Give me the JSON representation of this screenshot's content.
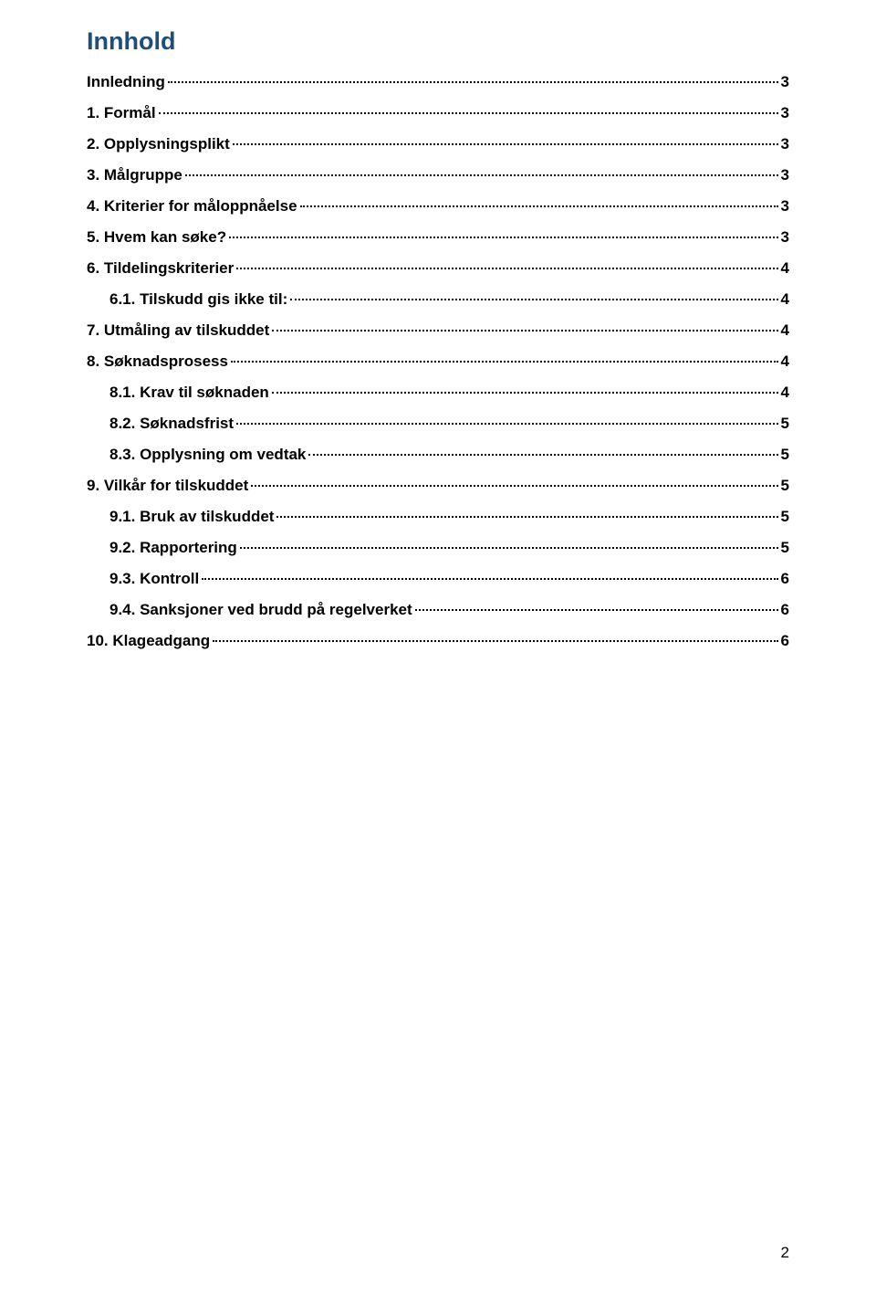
{
  "title": "Innhold",
  "entries": [
    {
      "label": "Innledning",
      "page": "3",
      "indent": 0
    },
    {
      "label": "1.   Formål",
      "page": "3",
      "indent": 0
    },
    {
      "label": "2.   Opplysningsplikt",
      "page": "3",
      "indent": 0
    },
    {
      "label": "3.   Målgruppe",
      "page": "3",
      "indent": 0
    },
    {
      "label": "4.   Kriterier for måloppnåelse",
      "page": "3",
      "indent": 0
    },
    {
      "label": "5.   Hvem kan søke?",
      "page": "3",
      "indent": 0
    },
    {
      "label": "6.   Tildelingskriterier",
      "page": "4",
      "indent": 0
    },
    {
      "label": "6.1.   Tilskudd gis ikke til:",
      "page": "4",
      "indent": 1
    },
    {
      "label": "7.   Utmåling av tilskuddet",
      "page": "4",
      "indent": 0
    },
    {
      "label": "8.   Søknadsprosess",
      "page": "4",
      "indent": 0
    },
    {
      "label": "8.1.   Krav til søknaden",
      "page": "4",
      "indent": 1
    },
    {
      "label": "8.2.   Søknadsfrist",
      "page": "5",
      "indent": 1
    },
    {
      "label": "8.3.   Opplysning om vedtak",
      "page": "5",
      "indent": 1
    },
    {
      "label": "9.   Vilkår for tilskuddet",
      "page": "5",
      "indent": 0
    },
    {
      "label": "9.1.   Bruk av tilskuddet",
      "page": "5",
      "indent": 1
    },
    {
      "label": "9.2.   Rapportering",
      "page": "5",
      "indent": 1
    },
    {
      "label": "9.3.   Kontroll",
      "page": "6",
      "indent": 1
    },
    {
      "label": "9.4.   Sanksjoner ved brudd på regelverket",
      "page": "6",
      "indent": 1
    },
    {
      "label": "10.   Klageadgang",
      "page": "6",
      "indent": 0
    }
  ],
  "page_number": "2"
}
